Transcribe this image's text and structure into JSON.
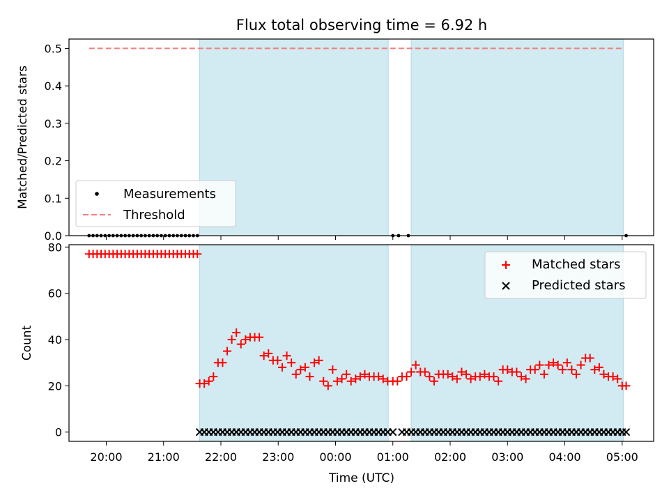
{
  "chart_data": {
    "type": "scatter",
    "title": "Flux total observing time = 6.92 h",
    "xlabel": "Time (UTC)",
    "x_unit": "hours since 20:00 UTC",
    "xlim": [
      -0.65,
      9.55
    ],
    "xticks": [
      {
        "value": 0,
        "label": "20:00"
      },
      {
        "value": 1,
        "label": "21:00"
      },
      {
        "value": 2,
        "label": "22:00"
      },
      {
        "value": 3,
        "label": "23:00"
      },
      {
        "value": 4,
        "label": "00:00"
      },
      {
        "value": 5,
        "label": "01:00"
      },
      {
        "value": 6,
        "label": "02:00"
      },
      {
        "value": 7,
        "label": "03:00"
      },
      {
        "value": 8,
        "label": "04:00"
      },
      {
        "value": 9,
        "label": "05:00"
      }
    ],
    "shaded_intervals": [
      [
        1.63,
        4.92
      ],
      [
        5.32,
        9.02
      ]
    ],
    "shade_color": "#add8e6",
    "panels": [
      {
        "id": "top",
        "ylabel": "Matched/Predicted stars",
        "ylim": [
          0,
          0.525
        ],
        "yticks": [
          {
            "value": 0,
            "label": "0.0"
          },
          {
            "value": 0.1,
            "label": "0.1"
          },
          {
            "value": 0.2,
            "label": "0.2"
          },
          {
            "value": 0.3,
            "label": "0.3"
          },
          {
            "value": 0.4,
            "label": "0.4"
          },
          {
            "value": 0.5,
            "label": "0.5"
          }
        ],
        "legend": {
          "position": "lower-left",
          "entries": [
            {
              "label": "Measurements",
              "marker": "dot"
            },
            {
              "label": "Threshold",
              "marker": "dashed-line"
            }
          ]
        },
        "threshold": {
          "name": "Threshold",
          "value": 0.5,
          "x_range": [
            -0.3,
            9.0
          ],
          "color": "#f08080"
        },
        "series": [
          {
            "name": "Measurements",
            "marker": "dot",
            "color": "#000000",
            "x": [
              -0.3,
              -0.23,
              -0.16,
              -0.09,
              -0.02,
              0.05,
              0.12,
              0.19,
              0.26,
              0.33,
              0.4,
              0.47,
              0.54,
              0.61,
              0.68,
              0.75,
              0.82,
              0.89,
              0.96,
              1.03,
              1.1,
              1.17,
              1.24,
              1.31,
              1.38,
              1.45,
              1.52,
              1.59,
              5.0,
              5.1,
              5.27,
              9.07
            ],
            "y": [
              0,
              0,
              0,
              0,
              0,
              0,
              0,
              0,
              0,
              0,
              0,
              0,
              0,
              0,
              0,
              0,
              0,
              0,
              0,
              0,
              0,
              0,
              0,
              0,
              0,
              0,
              0,
              0,
              0,
              0,
              0,
              0
            ]
          }
        ]
      },
      {
        "id": "bottom",
        "ylabel": "Count",
        "ylim": [
          -4,
          81
        ],
        "yticks": [
          {
            "value": 0,
            "label": "0"
          },
          {
            "value": 20,
            "label": "20"
          },
          {
            "value": 40,
            "label": "40"
          },
          {
            "value": 60,
            "label": "60"
          },
          {
            "value": 80,
            "label": "80"
          }
        ],
        "legend": {
          "position": "upper-right",
          "entries": [
            {
              "label": "Matched stars",
              "marker": "plus"
            },
            {
              "label": "Predicted stars",
              "marker": "x"
            }
          ]
        },
        "series": [
          {
            "name": "Matched stars",
            "marker": "plus",
            "color": "#ff0000",
            "x": [
              -0.3,
              -0.23,
              -0.16,
              -0.09,
              -0.02,
              0.05,
              0.12,
              0.19,
              0.26,
              0.33,
              0.4,
              0.47,
              0.54,
              0.61,
              0.68,
              0.75,
              0.82,
              0.89,
              0.96,
              1.03,
              1.1,
              1.17,
              1.24,
              1.31,
              1.38,
              1.45,
              1.52,
              1.59,
              1.63,
              1.71,
              1.79,
              1.87,
              1.95,
              2.03,
              2.11,
              2.19,
              2.27,
              2.35,
              2.43,
              2.51,
              2.59,
              2.67,
              2.75,
              2.83,
              2.91,
              2.99,
              3.07,
              3.15,
              3.23,
              3.31,
              3.39,
              3.47,
              3.55,
              3.63,
              3.71,
              3.79,
              3.87,
              3.95,
              4.03,
              4.11,
              4.19,
              4.27,
              4.35,
              4.43,
              4.51,
              4.59,
              4.67,
              4.75,
              4.83,
              4.91,
              5.0,
              5.08,
              5.16,
              5.24,
              5.32,
              5.4,
              5.48,
              5.56,
              5.64,
              5.72,
              5.8,
              5.88,
              5.96,
              6.04,
              6.12,
              6.2,
              6.28,
              6.36,
              6.44,
              6.52,
              6.6,
              6.68,
              6.76,
              6.84,
              6.92,
              7.0,
              7.08,
              7.16,
              7.24,
              7.32,
              7.4,
              7.48,
              7.56,
              7.64,
              7.72,
              7.8,
              7.88,
              7.96,
              8.04,
              8.12,
              8.2,
              8.28,
              8.36,
              8.44,
              8.52,
              8.6,
              8.68,
              8.76,
              8.84,
              8.92,
              9.0,
              9.07
            ],
            "y": [
              77,
              77,
              77,
              77,
              77,
              77,
              77,
              77,
              77,
              77,
              77,
              77,
              77,
              77,
              77,
              77,
              77,
              77,
              77,
              77,
              77,
              77,
              77,
              77,
              77,
              77,
              77,
              77,
              21,
              21,
              22,
              24,
              30,
              30,
              35,
              40,
              43,
              38,
              40,
              41,
              41,
              41,
              33,
              34,
              31,
              31,
              28,
              33,
              30,
              25,
              27,
              28,
              24,
              30,
              31,
              22,
              20,
              27,
              22,
              23,
              25,
              22,
              23,
              24,
              25,
              24,
              24,
              24,
              23,
              22,
              22,
              22,
              24,
              24,
              26,
              29,
              26,
              26,
              24,
              22,
              25,
              25,
              25,
              24,
              23,
              26,
              25,
              23,
              24,
              24,
              25,
              24,
              24,
              22,
              27,
              27,
              26,
              26,
              24,
              23,
              27,
              27,
              29,
              25,
              29,
              30,
              29,
              27,
              30,
              27,
              25,
              29,
              32,
              32,
              27,
              28,
              25,
              24,
              24,
              23,
              20,
              20
            ]
          },
          {
            "name": "Predicted stars",
            "marker": "x",
            "color": "#000000",
            "x": [
              1.63,
              1.71,
              1.79,
              1.87,
              1.95,
              2.03,
              2.11,
              2.19,
              2.27,
              2.35,
              2.43,
              2.51,
              2.59,
              2.67,
              2.75,
              2.83,
              2.91,
              2.99,
              3.07,
              3.15,
              3.23,
              3.31,
              3.39,
              3.47,
              3.55,
              3.63,
              3.71,
              3.79,
              3.87,
              3.95,
              4.03,
              4.11,
              4.19,
              4.27,
              4.35,
              4.43,
              4.51,
              4.59,
              4.67,
              4.75,
              4.83,
              4.91,
              5.0,
              5.16,
              5.24,
              5.32,
              5.4,
              5.48,
              5.56,
              5.64,
              5.72,
              5.8,
              5.88,
              5.96,
              6.04,
              6.12,
              6.2,
              6.28,
              6.36,
              6.44,
              6.52,
              6.6,
              6.68,
              6.76,
              6.84,
              6.92,
              7.0,
              7.08,
              7.16,
              7.24,
              7.32,
              7.4,
              7.48,
              7.56,
              7.64,
              7.72,
              7.8,
              7.88,
              7.96,
              8.04,
              8.12,
              8.2,
              8.28,
              8.36,
              8.44,
              8.52,
              8.6,
              8.68,
              8.76,
              8.84,
              8.92,
              9.0,
              9.07
            ],
            "y": [
              0,
              0,
              0,
              0,
              0,
              0,
              0,
              0,
              0,
              0,
              0,
              0,
              0,
              0,
              0,
              0,
              0,
              0,
              0,
              0,
              0,
              0,
              0,
              0,
              0,
              0,
              0,
              0,
              0,
              0,
              0,
              0,
              0,
              0,
              0,
              0,
              0,
              0,
              0,
              0,
              0,
              0,
              0,
              0,
              0,
              0,
              0,
              0,
              0,
              0,
              0,
              0,
              0,
              0,
              0,
              0,
              0,
              0,
              0,
              0,
              0,
              0,
              0,
              0,
              0,
              0,
              0,
              0,
              0,
              0,
              0,
              0,
              0,
              0,
              0,
              0,
              0,
              0,
              0,
              0,
              0,
              0,
              0,
              0,
              0,
              0,
              0,
              0,
              0,
              0,
              0,
              0,
              0
            ]
          }
        ]
      }
    ]
  }
}
